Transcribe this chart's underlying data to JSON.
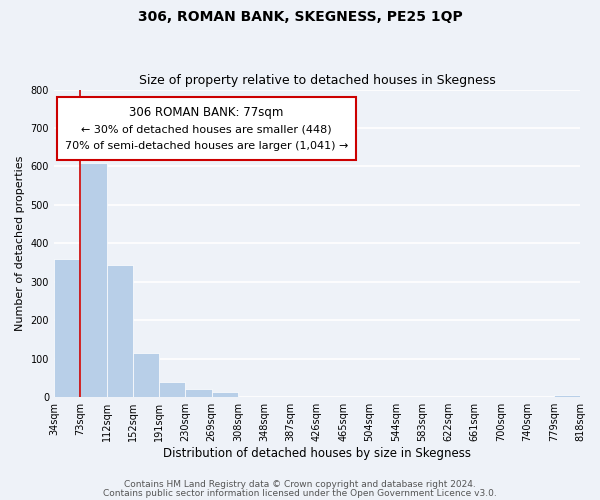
{
  "title": "306, ROMAN BANK, SKEGNESS, PE25 1QP",
  "subtitle": "Size of property relative to detached houses in Skegness",
  "xlabel": "Distribution of detached houses by size in Skegness",
  "ylabel": "Number of detached properties",
  "bar_values": [
    360,
    610,
    343,
    114,
    40,
    22,
    14,
    0,
    0,
    0,
    0,
    0,
    0,
    0,
    0,
    0,
    0,
    0,
    0,
    5
  ],
  "bin_labels": [
    "34sqm",
    "73sqm",
    "112sqm",
    "152sqm",
    "191sqm",
    "230sqm",
    "269sqm",
    "308sqm",
    "348sqm",
    "387sqm",
    "426sqm",
    "465sqm",
    "504sqm",
    "544sqm",
    "583sqm",
    "622sqm",
    "661sqm",
    "700sqm",
    "740sqm",
    "779sqm",
    "818sqm"
  ],
  "bar_color": "#b8cfe8",
  "bar_edge_color": "#b8cfe8",
  "property_bin_index": 1,
  "vline_color": "#cc0000",
  "annotation_title": "306 ROMAN BANK: 77sqm",
  "annotation_line1": "← 30% of detached houses are smaller (448)",
  "annotation_line2": "70% of semi-detached houses are larger (1,041) →",
  "box_edge_color": "#cc0000",
  "ylim": [
    0,
    800
  ],
  "yticks": [
    0,
    100,
    200,
    300,
    400,
    500,
    600,
    700,
    800
  ],
  "footer1": "Contains HM Land Registry data © Crown copyright and database right 2024.",
  "footer2": "Contains public sector information licensed under the Open Government Licence v3.0.",
  "background_color": "#eef2f8",
  "grid_color": "#ffffff",
  "title_fontsize": 10,
  "subtitle_fontsize": 9,
  "annotation_title_fontsize": 8.5,
  "annotation_fontsize": 8,
  "tick_fontsize": 7,
  "ylabel_fontsize": 8,
  "xlabel_fontsize": 8.5,
  "footer_fontsize": 6.5
}
